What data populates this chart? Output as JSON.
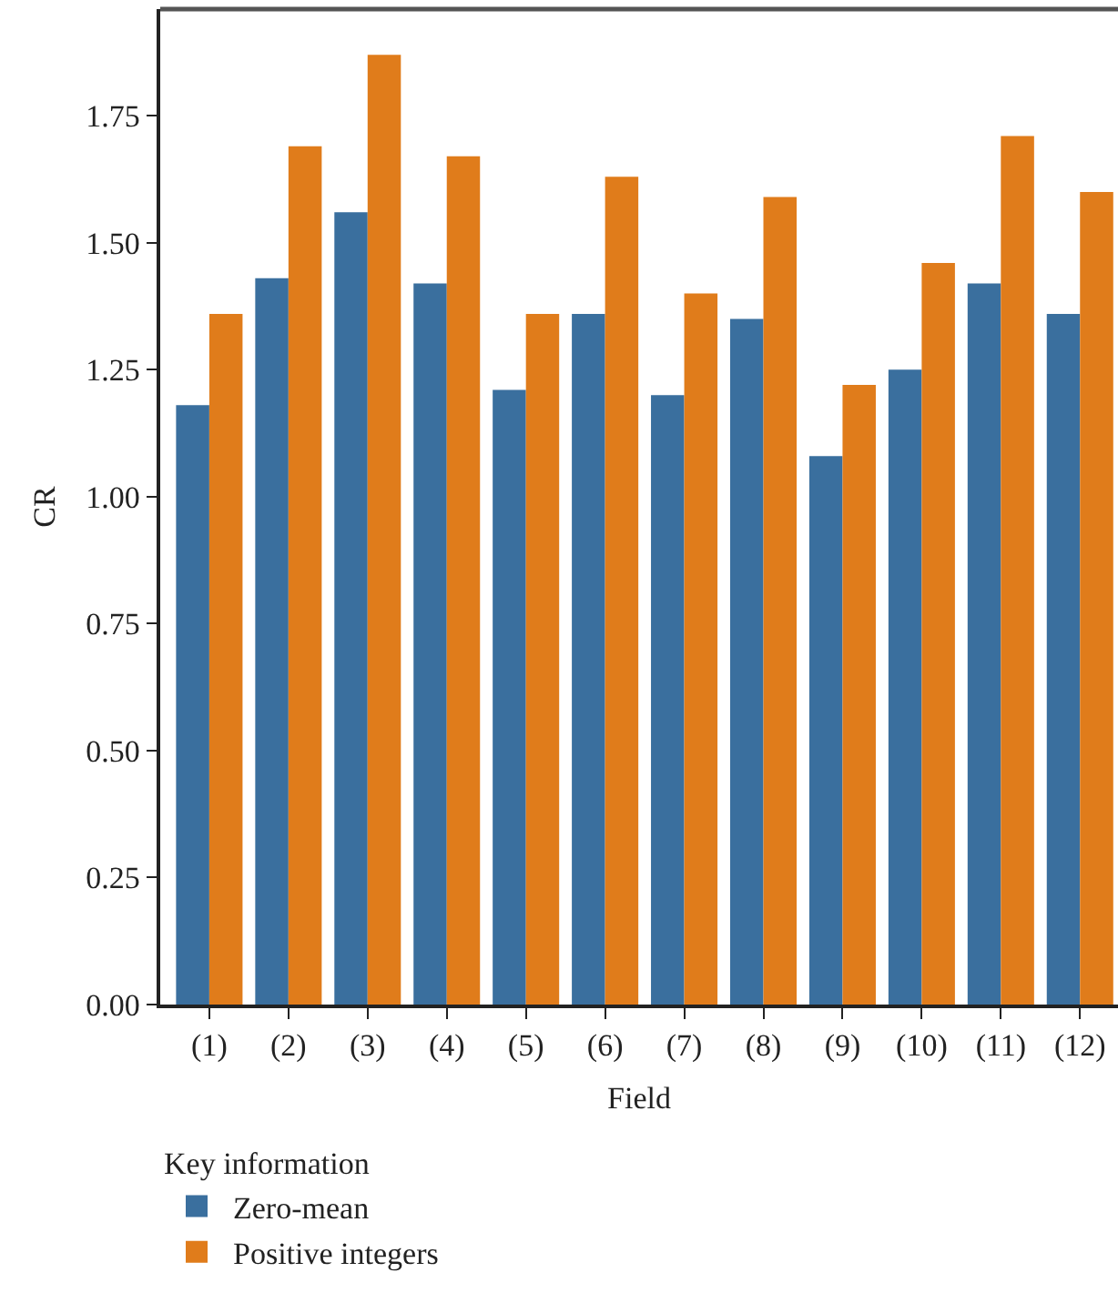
{
  "chart_data": {
    "type": "bar",
    "xlabel": "Field",
    "ylabel": "CR",
    "legend_title": "Key information",
    "legend": "bottom left",
    "categories": [
      "(1)",
      "(2)",
      "(3)",
      "(4)",
      "(5)",
      "(6)",
      "(7)",
      "(8)",
      "(9)",
      "(10)",
      "(11)",
      "(12)"
    ],
    "series": [
      {
        "name": "Zero-mean",
        "color": "#3a6f9e",
        "values": [
          1.18,
          1.43,
          1.56,
          1.42,
          1.21,
          1.36,
          1.2,
          1.35,
          1.08,
          1.25,
          1.42,
          1.36
        ]
      },
      {
        "name": "Positive integers",
        "color": "#e07c1b",
        "values": [
          1.36,
          1.69,
          1.87,
          1.67,
          1.36,
          1.63,
          1.4,
          1.59,
          1.22,
          1.46,
          1.71,
          1.6
        ]
      }
    ],
    "ylim": [
      0,
      1.96
    ],
    "yticks": [
      {
        "value": 0,
        "label": "0.00"
      },
      {
        "value": 0.25,
        "label": "0.25"
      },
      {
        "value": 0.5,
        "label": "0.50"
      },
      {
        "value": 0.75,
        "label": "0.75"
      },
      {
        "value": 1,
        "label": "1.00"
      },
      {
        "value": 1.25,
        "label": "1.25"
      },
      {
        "value": 1.5,
        "label": "1.50"
      },
      {
        "value": 1.75,
        "label": "1.75"
      }
    ],
    "grid": false
  }
}
